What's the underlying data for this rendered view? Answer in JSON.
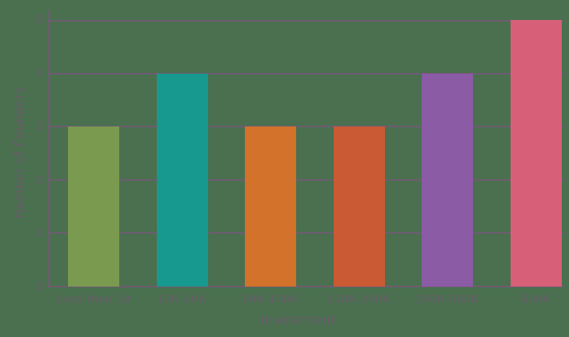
{
  "chart_data": {
    "type": "bar",
    "title": "",
    "xlabel": "Investment",
    "ylabel": "Number of Founders",
    "categories": [
      "Less than 10",
      "10K-50K",
      "50K-100K",
      "100K-250K",
      "250K-500K",
      "500K"
    ],
    "values": [
      3,
      4,
      3,
      3,
      4,
      5
    ],
    "bar_colors": [
      "#7a9a50",
      "#17998f",
      "#d2722b",
      "#ca5a34",
      "#8b5ba6",
      "#d76078"
    ],
    "ylim": [
      0,
      5
    ],
    "yticks": [
      0,
      1,
      2,
      3,
      4,
      5
    ],
    "grid": "horizontal-gridlines-on",
    "legend": "none"
  },
  "style": {
    "background_color": "#4a7050",
    "axis_color": "#6e5c70",
    "text_color": "#6a5a6a"
  }
}
